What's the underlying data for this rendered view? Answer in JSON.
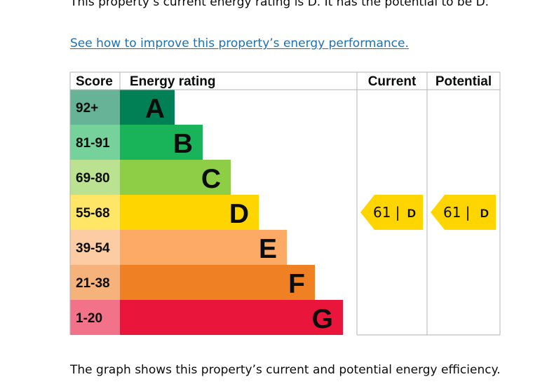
{
  "intro_text": "This property’s current energy rating is D. It has the potential to be D.",
  "improve_link": "See how to improve this property’s energy performance.",
  "footer_text": "The graph shows this property’s current and potential energy efficiency.",
  "chart_data": {
    "type": "bar",
    "columns": [
      "Score",
      "Energy rating",
      "Current",
      "Potential"
    ],
    "bands": [
      {
        "letter": "A",
        "score": "92+",
        "color": "#008054",
        "score_color": "#66b398"
      },
      {
        "letter": "B",
        "score": "81-91",
        "color": "#19b459",
        "score_color": "#75d29b"
      },
      {
        "letter": "C",
        "score": "69-80",
        "color": "#8dce46",
        "score_color": "#bbe290"
      },
      {
        "letter": "D",
        "score": "55-68",
        "color": "#ffd500",
        "score_color": "#ffe666"
      },
      {
        "letter": "E",
        "score": "39-54",
        "color": "#fcaa65",
        "score_color": "#fdcca3"
      },
      {
        "letter": "F",
        "score": "21-38",
        "color": "#ef8023",
        "score_color": "#f5b37b"
      },
      {
        "letter": "G",
        "score": "1-20",
        "color": "#e9153b",
        "score_color": "#f27389"
      }
    ],
    "current": {
      "value": 61,
      "band": "D",
      "label": "61 |",
      "letter": "D"
    },
    "potential": {
      "value": 61,
      "band": "D",
      "label": "61 |",
      "letter": "D"
    },
    "marker_color": "#ffd500",
    "grid_color": "#b1b4b6"
  }
}
